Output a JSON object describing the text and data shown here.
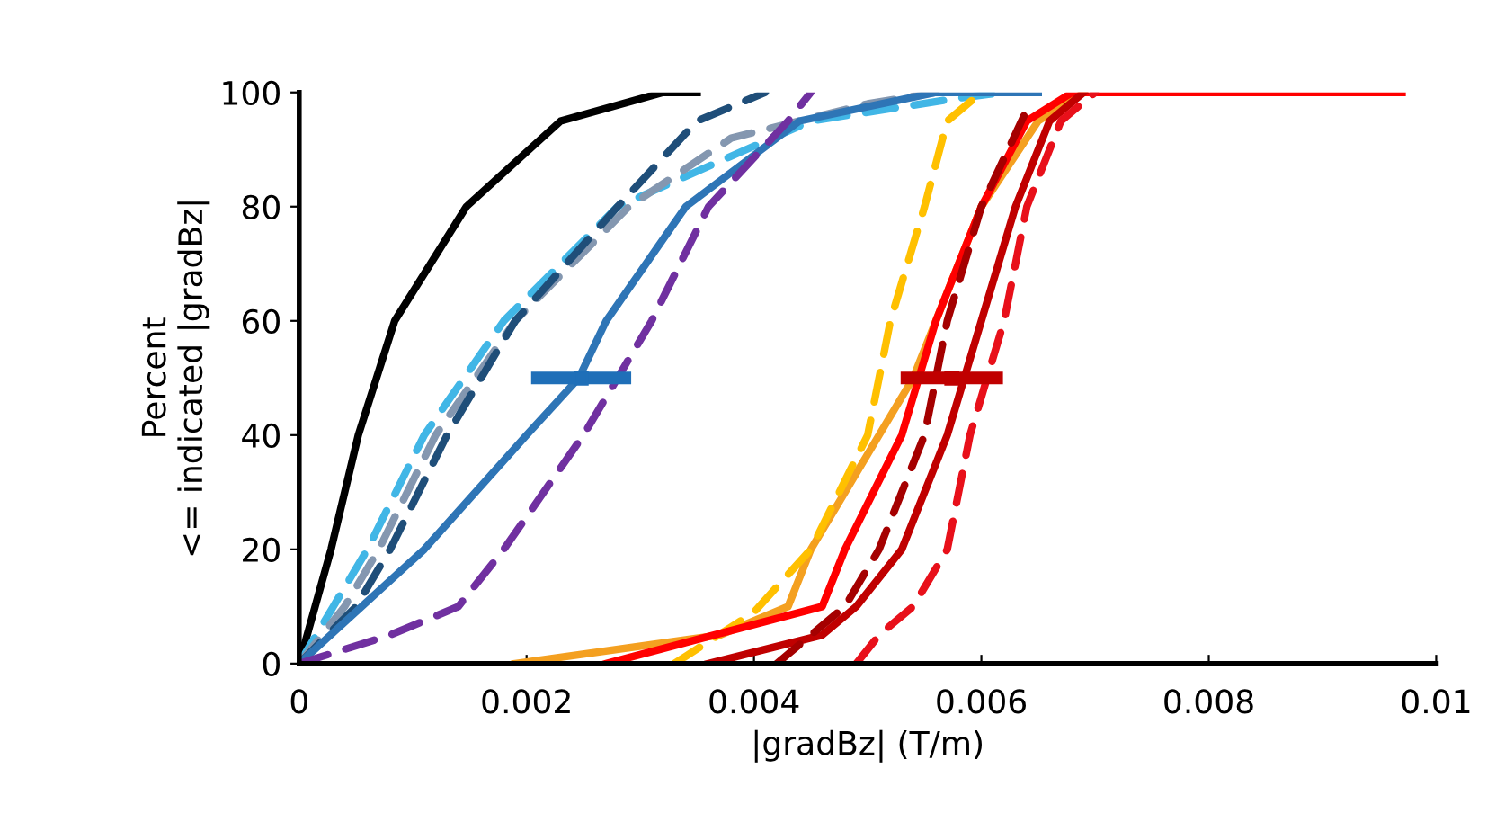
{
  "chart_data": {
    "type": "line",
    "xlabel": "|gradBz| (T/m)",
    "ylabel": "Percent\n<= indicated |gradBz|",
    "xlim": [
      0,
      0.01
    ],
    "xticks": [
      0,
      0.002,
      0.004,
      0.006,
      0.008,
      0.01
    ],
    "ylim": [
      0,
      100
    ],
    "yticks": [
      0,
      20,
      40,
      60,
      80,
      100
    ],
    "grid": false,
    "legend": false,
    "marker": "none",
    "series": [
      {
        "color": "#000000",
        "line_style": "solid",
        "x": [
          0,
          0.00028,
          0.00052,
          0.00084,
          0.00147,
          0.0023,
          0.0032,
          0.0035
        ],
        "values": [
          0,
          20,
          40,
          60,
          80,
          95,
          100,
          100
        ]
      },
      {
        "color": "#41b6e6",
        "line_style": "dashed",
        "x": [
          0,
          0.0003,
          0.0006,
          0.0011,
          0.0018,
          0.0028,
          0.0045,
          0.0058,
          0.0062
        ],
        "values": [
          0,
          10,
          20,
          40,
          60,
          80,
          95,
          99,
          100
        ]
      },
      {
        "color": "#8497b0",
        "line_style": "dashed",
        "x": [
          0,
          0.0004,
          0.0007,
          0.0012,
          0.0019,
          0.0029,
          0.0038,
          0.005,
          0.0056
        ],
        "values": [
          0,
          10,
          20,
          40,
          60,
          80,
          92,
          98,
          100
        ]
      },
      {
        "color": "#1f4e79",
        "line_style": "dashed",
        "x": [
          0,
          0.0005,
          0.0008,
          0.0013,
          0.0019,
          0.0028,
          0.0035,
          0.0041
        ],
        "values": [
          0,
          10,
          20,
          40,
          60,
          80,
          95,
          100
        ]
      },
      {
        "color": "#2e75b6",
        "line_style": "solid",
        "x": [
          0,
          0.0011,
          0.002,
          0.00246,
          0.0027,
          0.0034,
          0.0044,
          0.0056,
          0.0065
        ],
        "values": [
          0,
          20,
          40,
          50,
          60,
          80,
          95,
          100,
          100
        ]
      },
      {
        "color": "#7030a0",
        "line_style": "dashed",
        "x": [
          0,
          0.0008,
          0.0014,
          0.0018,
          0.0025,
          0.0031,
          0.0036,
          0.0043,
          0.0045
        ],
        "values": [
          0,
          5,
          10,
          20,
          40,
          60,
          80,
          95,
          100
        ]
      },
      {
        "color": "#f4a020",
        "line_style": "solid",
        "x": [
          0.0019,
          0.0037,
          0.0043,
          0.0045,
          0.0048,
          0.0054,
          0.006,
          0.0065,
          0.0069
        ],
        "values": [
          0,
          5,
          10,
          20,
          30,
          50,
          80,
          95,
          100
        ]
      },
      {
        "color": "#ffc000",
        "line_style": "dashed",
        "x": [
          0.0033,
          0.004,
          0.0045,
          0.005,
          0.0052,
          0.0055,
          0.0057,
          0.006
        ],
        "values": [
          0,
          9,
          20,
          40,
          60,
          80,
          95,
          100
        ]
      },
      {
        "color": "#ff0000",
        "line_style": "solid",
        "x": [
          0.0027,
          0.0046,
          0.0048,
          0.0053,
          0.0056,
          0.006,
          0.0064,
          0.0068,
          0.0097
        ],
        "values": [
          0,
          10,
          20,
          40,
          60,
          80,
          95,
          100,
          100
        ]
      },
      {
        "color": "#c00000",
        "line_style": "solid",
        "x": [
          0.0036,
          0.0046,
          0.0049,
          0.0053,
          0.0057,
          0.006,
          0.0063,
          0.0066,
          0.0069
        ],
        "values": [
          0,
          5,
          10,
          20,
          40,
          60,
          80,
          95,
          100
        ]
      },
      {
        "color": "#a50000",
        "line_style": "dashed",
        "x": [
          0.0042,
          0.0048,
          0.0051,
          0.0055,
          0.0057,
          0.006,
          0.0064
        ],
        "values": [
          0,
          10,
          20,
          40,
          60,
          80,
          97
        ]
      },
      {
        "color": "#e8101a",
        "line_style": "dashed",
        "x": [
          0.0049,
          0.0051,
          0.0054,
          0.0057,
          0.0059,
          0.0062,
          0.0064,
          0.0067,
          0.007
        ],
        "values": [
          0,
          5,
          10,
          20,
          40,
          60,
          80,
          95,
          100
        ]
      },
      {
        "type": "scatter",
        "marker": "square",
        "color": "#1f6fb8",
        "x": [
          0.00248
        ],
        "values": [
          50
        ],
        "xerrors": [
          0.00044
        ]
      },
      {
        "type": "scatter",
        "marker": "square",
        "color": "#c00000",
        "x": [
          0.00574
        ],
        "values": [
          50
        ],
        "xerrors": [
          0.00045
        ]
      }
    ]
  }
}
